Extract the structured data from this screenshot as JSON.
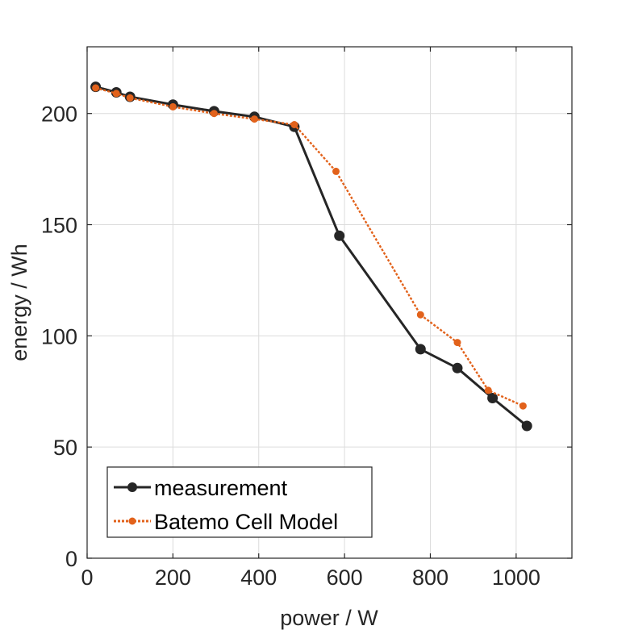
{
  "chart_data": {
    "type": "line",
    "title": "",
    "xlabel": "power / W",
    "ylabel": "energy / Wh",
    "xlim": [
      0,
      1130
    ],
    "ylim": [
      0,
      230
    ],
    "xticks": [
      0,
      200,
      400,
      600,
      800,
      1000
    ],
    "yticks": [
      0,
      50,
      100,
      150,
      200
    ],
    "xtick_labels": [
      "0",
      "200",
      "400",
      "600",
      "800",
      "1000"
    ],
    "ytick_labels": [
      "0",
      "50",
      "100",
      "150",
      "200"
    ],
    "grid": true,
    "legend_position": "bottom-left",
    "series": [
      {
        "name": "measurement",
        "color": "#262626",
        "line_style": "solid",
        "marker": "circle",
        "x": [
          20,
          68,
          100,
          200,
          296,
          390,
          483,
          588,
          777,
          863,
          945,
          1025
        ],
        "y": [
          212,
          209.5,
          207.5,
          204,
          201,
          198.5,
          194,
          145,
          94,
          85.5,
          72,
          59.5
        ]
      },
      {
        "name": "Batemo Cell Model",
        "color": "#e2621b",
        "line_style": "dotted",
        "marker": "dot",
        "x": [
          20,
          68,
          100,
          200,
          296,
          390,
          483,
          580,
          777,
          863,
          935,
          1016
        ],
        "y": [
          211.5,
          209,
          207,
          203,
          200,
          197.5,
          195,
          174,
          109.5,
          97,
          75.5,
          68.5
        ]
      }
    ]
  }
}
